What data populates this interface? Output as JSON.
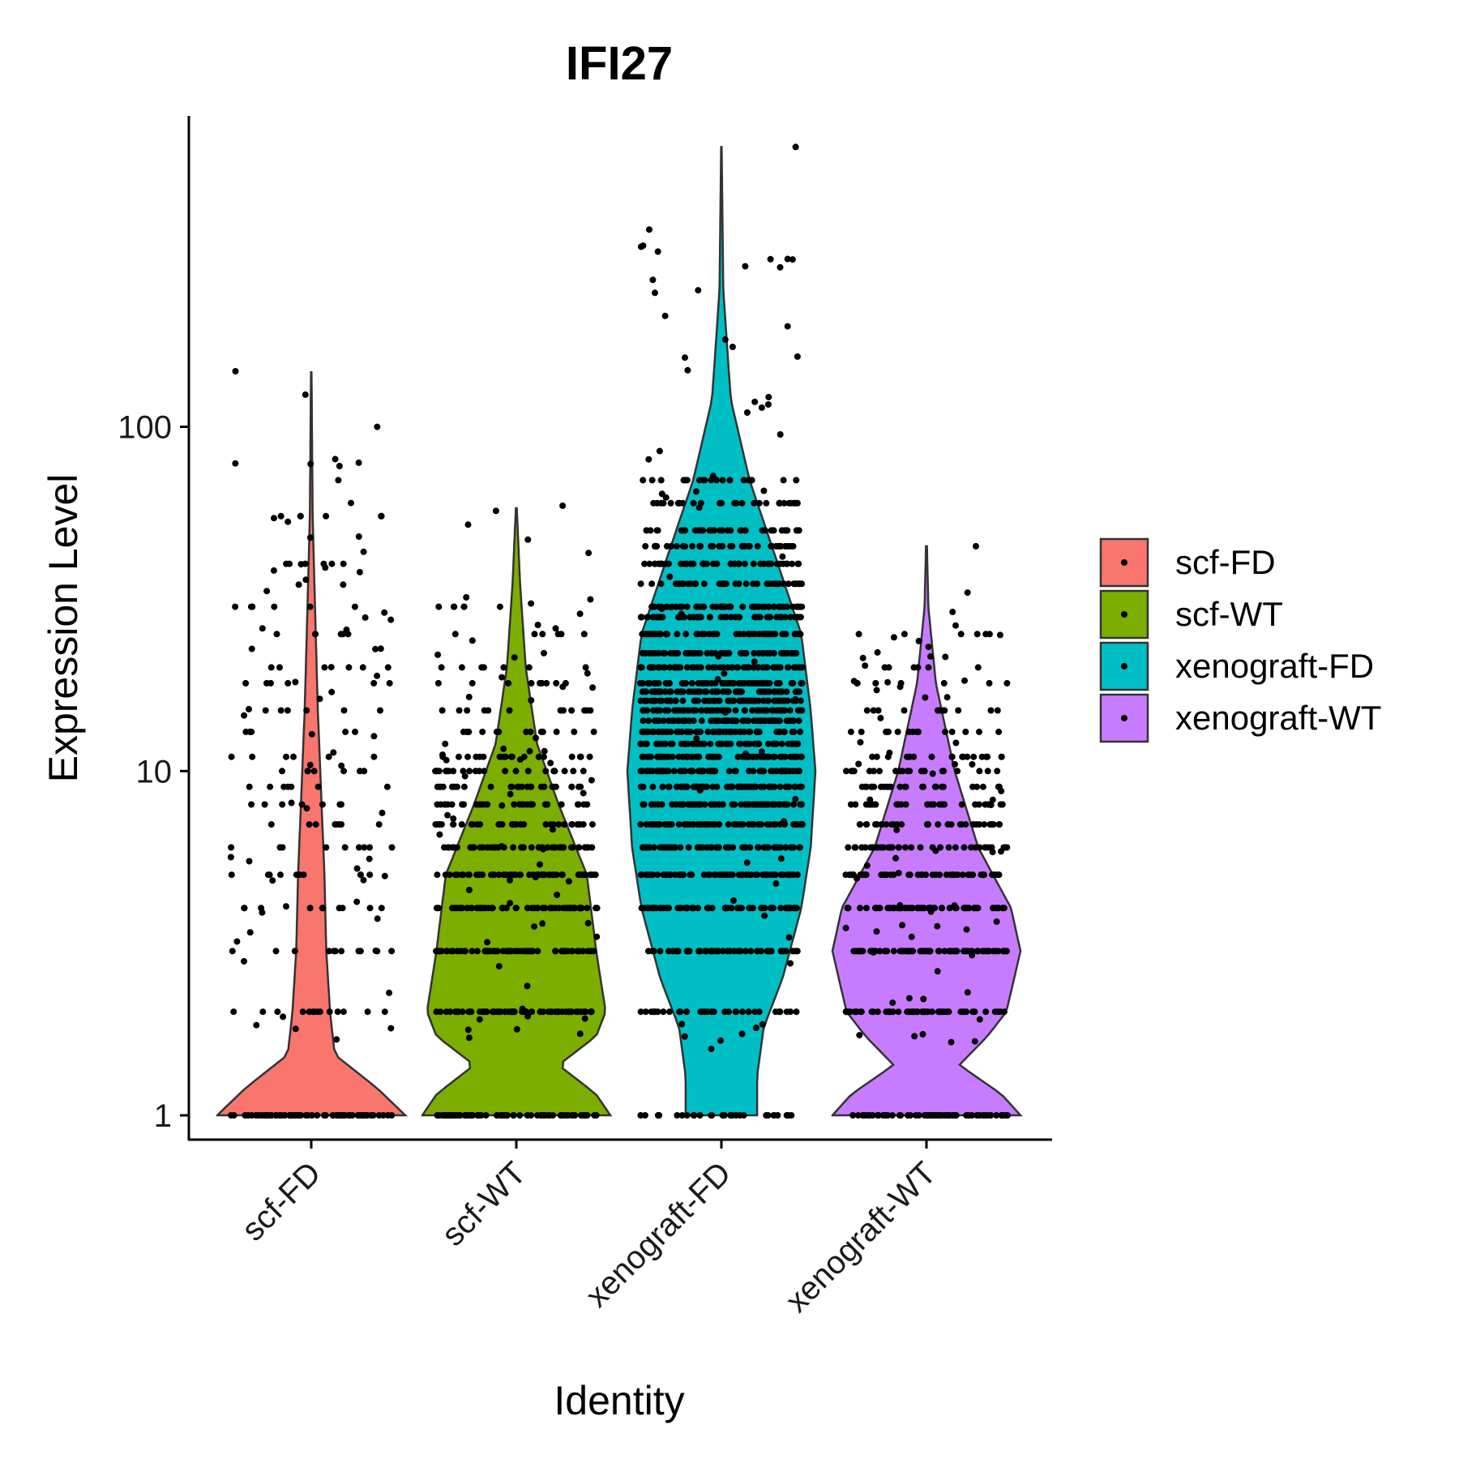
{
  "chart_data": {
    "type": "violin",
    "title": "IFI27",
    "xlabel": "Identity",
    "ylabel": "Expression Level",
    "y_scale": "log10",
    "ylim": [
      0.85,
      800
    ],
    "y_ticks": [
      1,
      10,
      100
    ],
    "y_tick_labels": [
      "1",
      "10",
      "100"
    ],
    "categories": [
      "scf-FD",
      "scf-WT",
      "xenograft-FD",
      "xenograft-WT"
    ],
    "legend_position": "right",
    "series": [
      {
        "name": "scf-FD",
        "color": "#F8766D",
        "max": 144,
        "density": [
          [
            1,
            1.0
          ],
          [
            1.2,
            0.7
          ],
          [
            1.5,
            0.25
          ],
          [
            2,
            0.2
          ],
          [
            3,
            0.16
          ],
          [
            5,
            0.14
          ],
          [
            8,
            0.11
          ],
          [
            15,
            0.07
          ],
          [
            30,
            0.04
          ],
          [
            55,
            0.015
          ],
          [
            144,
            0.003
          ]
        ],
        "levels": [
          1,
          2,
          3,
          4,
          5,
          6,
          7,
          8,
          9,
          10,
          11,
          13,
          15,
          18,
          20,
          25,
          30,
          40,
          55
        ],
        "outliers": [
          48,
          53,
          70,
          78,
          100,
          124,
          145
        ]
      },
      {
        "name": "scf-WT",
        "color": "#7CAE00",
        "max": 58,
        "density": [
          [
            1,
            1.0
          ],
          [
            1.15,
            0.85
          ],
          [
            1.4,
            0.45
          ],
          [
            1.7,
            0.85
          ],
          [
            2,
            0.95
          ],
          [
            3,
            0.85
          ],
          [
            5,
            0.75
          ],
          [
            8,
            0.45
          ],
          [
            12,
            0.22
          ],
          [
            20,
            0.1
          ],
          [
            35,
            0.04
          ],
          [
            58,
            0.005
          ]
        ],
        "levels": [
          1,
          2,
          3,
          4,
          5,
          6,
          7,
          8,
          9,
          10,
          11,
          13,
          15,
          18,
          20,
          25,
          30
        ],
        "outliers": [
          43,
          47,
          52,
          57,
          59
        ]
      },
      {
        "name": "xenograft-FD",
        "color": "#00BFC4",
        "max": 650,
        "density": [
          [
            1,
            0.38
          ],
          [
            1.3,
            0.38
          ],
          [
            1.8,
            0.45
          ],
          [
            2.5,
            0.65
          ],
          [
            4,
            0.85
          ],
          [
            6,
            0.95
          ],
          [
            10,
            1.0
          ],
          [
            15,
            0.95
          ],
          [
            25,
            0.85
          ],
          [
            40,
            0.6
          ],
          [
            70,
            0.3
          ],
          [
            120,
            0.1
          ],
          [
            250,
            0.02
          ],
          [
            650,
            0.003
          ]
        ],
        "levels": [
          1,
          2,
          3,
          4,
          5,
          6,
          7,
          8,
          9,
          10,
          11,
          12,
          13,
          14,
          15,
          16,
          17,
          18,
          20,
          22,
          25,
          28,
          30,
          35,
          40,
          45,
          50,
          60,
          70
        ],
        "outliers": [
          85,
          95,
          110,
          122,
          160,
          210,
          650
        ]
      },
      {
        "name": "xenograft-WT",
        "color": "#C77CFF",
        "max": 45,
        "density": [
          [
            1,
            1.0
          ],
          [
            1.15,
            0.8
          ],
          [
            1.4,
            0.35
          ],
          [
            1.7,
            0.65
          ],
          [
            2,
            0.85
          ],
          [
            3,
            1.0
          ],
          [
            4,
            0.9
          ],
          [
            6,
            0.55
          ],
          [
            10,
            0.3
          ],
          [
            18,
            0.1
          ],
          [
            30,
            0.02
          ],
          [
            45,
            0.005
          ]
        ],
        "levels": [
          1,
          2,
          3,
          4,
          5,
          6,
          7,
          8,
          9,
          10,
          11,
          13,
          15,
          18,
          20,
          25
        ],
        "outliers": [
          29,
          33,
          45
        ]
      }
    ]
  }
}
